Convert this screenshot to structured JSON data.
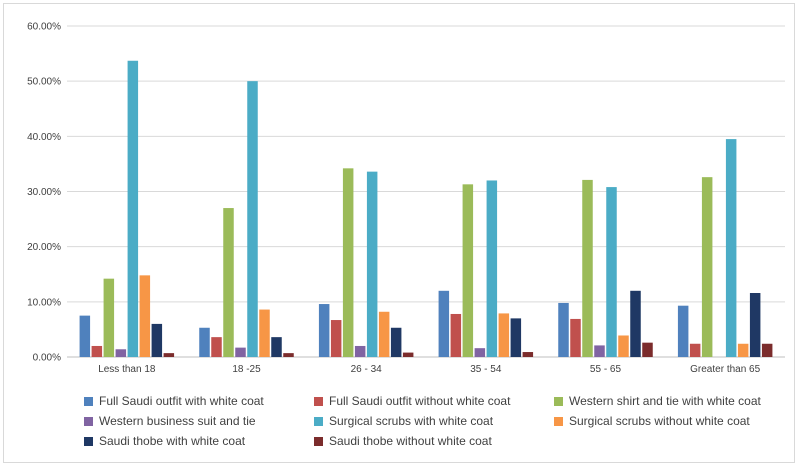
{
  "chart_data": {
    "type": "bar",
    "title": "",
    "xlabel": "",
    "ylabel": "",
    "ylim": [
      0,
      60
    ],
    "yticks": [
      "0.00%",
      "10.00%",
      "20.00%",
      "30.00%",
      "40.00%",
      "50.00%",
      "60.00%"
    ],
    "grid": true,
    "legend_position": "bottom",
    "categories": [
      "Less than 18",
      "18 -25",
      "26 - 34",
      "35 - 54",
      "55 - 65",
      "Greater than 65"
    ],
    "series": [
      {
        "name": "Full Saudi outfit with white coat",
        "color": "#4f81bd",
        "values": [
          7.5,
          5.3,
          9.6,
          12.0,
          9.8,
          9.3
        ]
      },
      {
        "name": "Full Saudi outfit without white coat",
        "color": "#c0504d",
        "values": [
          2.0,
          3.6,
          6.7,
          7.8,
          6.9,
          2.4
        ]
      },
      {
        "name": "Western shirt and tie with white coat",
        "color": "#9bbb59",
        "values": [
          14.2,
          27.0,
          34.2,
          31.3,
          32.1,
          32.6
        ]
      },
      {
        "name": "Western business suit and tie",
        "color": "#8064a2",
        "values": [
          1.4,
          1.7,
          2.0,
          1.6,
          2.1,
          0.0
        ]
      },
      {
        "name": "Surgical scrubs with white coat",
        "color": "#4bacc6",
        "values": [
          53.7,
          50.0,
          33.6,
          32.0,
          30.8,
          39.5
        ]
      },
      {
        "name": "Surgical scrubs without white coat",
        "color": "#f79646",
        "values": [
          14.8,
          8.6,
          8.2,
          7.9,
          3.9,
          2.4
        ]
      },
      {
        "name": "Saudi thobe with white coat",
        "color": "#1f3864",
        "values": [
          6.0,
          3.6,
          5.3,
          7.0,
          12.0,
          11.6
        ]
      },
      {
        "name": "Saudi thobe without white coat",
        "color": "#7b2c2c",
        "values": [
          0.7,
          0.7,
          0.8,
          0.9,
          2.6,
          2.4
        ]
      }
    ]
  }
}
